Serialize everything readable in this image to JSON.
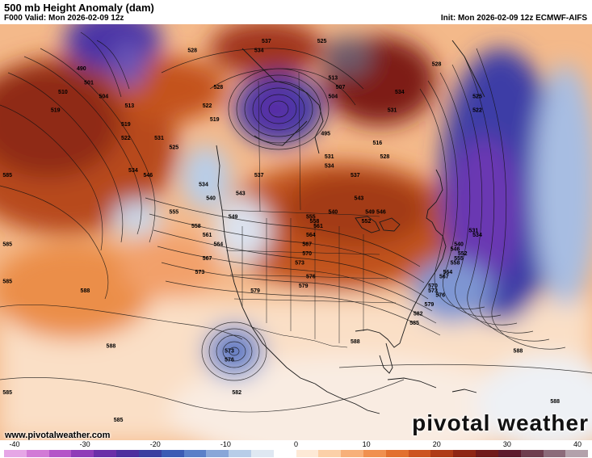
{
  "header": {
    "title": "500 mb Height Anomaly (dam)",
    "valid": "F000 Valid: Mon 2026-02-09 12z",
    "init": "Init: Mon 2026-02-09 12z ECMWF-AIFS"
  },
  "footer": {
    "website": "www.pivotalweather.com",
    "brand": "pivotal weather"
  },
  "colorbar": {
    "tick_labels": [
      "-40",
      "-30",
      "-20",
      "-10",
      "0",
      "10",
      "20",
      "30",
      "40"
    ],
    "min": -40,
    "max": 40,
    "colors": [
      "#e6a6e6",
      "#d27ad6",
      "#b455c8",
      "#8f3cb8",
      "#6a2fa8",
      "#4c2f9e",
      "#3a3fa0",
      "#3b5bb4",
      "#5a7fc8",
      "#89a6d8",
      "#b8cde8",
      "#dfe8f2",
      "#ffffff",
      "#fde9d6",
      "#fbd0a8",
      "#f7b07a",
      "#f0904f",
      "#e2702e",
      "#cc5420",
      "#ae3b17",
      "#8e2614",
      "#701a1a",
      "#5c1a2c",
      "#6e3d4e",
      "#8c6b7a",
      "#b3a1ab"
    ]
  },
  "contours": {
    "labels": [
      {
        "text": "490",
        "lon": -158,
        "lat": 66
      },
      {
        "text": "501",
        "lon": -156,
        "lat": 63
      },
      {
        "text": "504",
        "lon": -152,
        "lat": 60
      },
      {
        "text": "510",
        "lon": -163,
        "lat": 61
      },
      {
        "text": "519",
        "lon": -165,
        "lat": 57
      },
      {
        "text": "513",
        "lon": -145,
        "lat": 58
      },
      {
        "text": "519",
        "lon": -146,
        "lat": 54
      },
      {
        "text": "522",
        "lon": -146,
        "lat": 51
      },
      {
        "text": "528",
        "lon": -128,
        "lat": 70
      },
      {
        "text": "528",
        "lon": -121,
        "lat": 62
      },
      {
        "text": "537",
        "lon": -108,
        "lat": 72
      },
      {
        "text": "534",
        "lon": -110,
        "lat": 70
      },
      {
        "text": "525",
        "lon": -93,
        "lat": 72
      },
      {
        "text": "522",
        "lon": -124,
        "lat": 58
      },
      {
        "text": "519",
        "lon": -122,
        "lat": 55
      },
      {
        "text": "513",
        "lon": -90,
        "lat": 64
      },
      {
        "text": "507",
        "lon": -88,
        "lat": 62
      },
      {
        "text": "504",
        "lon": -90,
        "lat": 60
      },
      {
        "text": "495",
        "lon": -92,
        "lat": 52
      },
      {
        "text": "531",
        "lon": -137,
        "lat": 51
      },
      {
        "text": "525",
        "lon": -133,
        "lat": 49
      },
      {
        "text": "534",
        "lon": -144,
        "lat": 44
      },
      {
        "text": "546",
        "lon": -140,
        "lat": 43
      },
      {
        "text": "534",
        "lon": -125,
        "lat": 41
      },
      {
        "text": "540",
        "lon": -123,
        "lat": 38
      },
      {
        "text": "543",
        "lon": -115,
        "lat": 39
      },
      {
        "text": "537",
        "lon": -110,
        "lat": 43
      },
      {
        "text": "549",
        "lon": -117,
        "lat": 34
      },
      {
        "text": "555",
        "lon": -133,
        "lat": 35
      },
      {
        "text": "558",
        "lon": -127,
        "lat": 32
      },
      {
        "text": "561",
        "lon": -124,
        "lat": 30
      },
      {
        "text": "564",
        "lon": -121,
        "lat": 28
      },
      {
        "text": "567",
        "lon": -124,
        "lat": 25
      },
      {
        "text": "573",
        "lon": -126,
        "lat": 22
      },
      {
        "text": "579",
        "lon": -111,
        "lat": 18
      },
      {
        "text": "579",
        "lon": -98,
        "lat": 19
      },
      {
        "text": "576",
        "lon": -96,
        "lat": 21
      },
      {
        "text": "573",
        "lon": -99,
        "lat": 24
      },
      {
        "text": "570",
        "lon": -97,
        "lat": 26
      },
      {
        "text": "567",
        "lon": -97,
        "lat": 28
      },
      {
        "text": "564",
        "lon": -96,
        "lat": 30
      },
      {
        "text": "561",
        "lon": -94,
        "lat": 32
      },
      {
        "text": "558",
        "lon": -95,
        "lat": 33
      },
      {
        "text": "555",
        "lon": -96,
        "lat": 34
      },
      {
        "text": "552",
        "lon": -81,
        "lat": 33
      },
      {
        "text": "549",
        "lon": -80,
        "lat": 35
      },
      {
        "text": "546",
        "lon": -77,
        "lat": 35
      },
      {
        "text": "543",
        "lon": -83,
        "lat": 38
      },
      {
        "text": "540",
        "lon": -90,
        "lat": 35
      },
      {
        "text": "537",
        "lon": -84,
        "lat": 43
      },
      {
        "text": "534",
        "lon": -91,
        "lat": 45
      },
      {
        "text": "531",
        "lon": -91,
        "lat": 47
      },
      {
        "text": "528",
        "lon": -76,
        "lat": 47
      },
      {
        "text": "516",
        "lon": -78,
        "lat": 50
      },
      {
        "text": "531",
        "lon": -74,
        "lat": 57
      },
      {
        "text": "534",
        "lon": -72,
        "lat": 61
      },
      {
        "text": "528",
        "lon": -62,
        "lat": 67
      },
      {
        "text": "525",
        "lon": -51,
        "lat": 60
      },
      {
        "text": "522",
        "lon": -51,
        "lat": 57
      },
      {
        "text": "531",
        "lon": -52,
        "lat": 31
      },
      {
        "text": "534",
        "lon": -51,
        "lat": 30
      },
      {
        "text": "540",
        "lon": -56,
        "lat": 28
      },
      {
        "text": "546",
        "lon": -57,
        "lat": 27
      },
      {
        "text": "552",
        "lon": -55,
        "lat": 26
      },
      {
        "text": "555",
        "lon": -56,
        "lat": 25
      },
      {
        "text": "558",
        "lon": -57,
        "lat": 24
      },
      {
        "text": "564",
        "lon": -59,
        "lat": 22
      },
      {
        "text": "567",
        "lon": -60,
        "lat": 21
      },
      {
        "text": "570",
        "lon": -63,
        "lat": 19
      },
      {
        "text": "573",
        "lon": -63,
        "lat": 18
      },
      {
        "text": "576",
        "lon": -61,
        "lat": 17
      },
      {
        "text": "579",
        "lon": -64,
        "lat": 15
      },
      {
        "text": "582",
        "lon": -67,
        "lat": 13
      },
      {
        "text": "585",
        "lon": -68,
        "lat": 11
      },
      {
        "text": "585",
        "lon": -178,
        "lat": 43
      },
      {
        "text": "585",
        "lon": -178,
        "lat": 28
      },
      {
        "text": "585",
        "lon": -178,
        "lat": 20
      },
      {
        "text": "588",
        "lon": -157,
        "lat": 18
      },
      {
        "text": "588",
        "lon": -150,
        "lat": 6
      },
      {
        "text": "588",
        "lon": -84,
        "lat": 7
      },
      {
        "text": "588",
        "lon": -40,
        "lat": 5
      },
      {
        "text": "588",
        "lon": -30,
        "lat": -6
      },
      {
        "text": "585",
        "lon": -178,
        "lat": -4
      },
      {
        "text": "585",
        "lon": -148,
        "lat": -10
      },
      {
        "text": "582",
        "lon": -116,
        "lat": -4
      },
      {
        "text": "573",
        "lon": -118,
        "lat": 5
      },
      {
        "text": "576",
        "lon": -118,
        "lat": 3
      }
    ]
  }
}
